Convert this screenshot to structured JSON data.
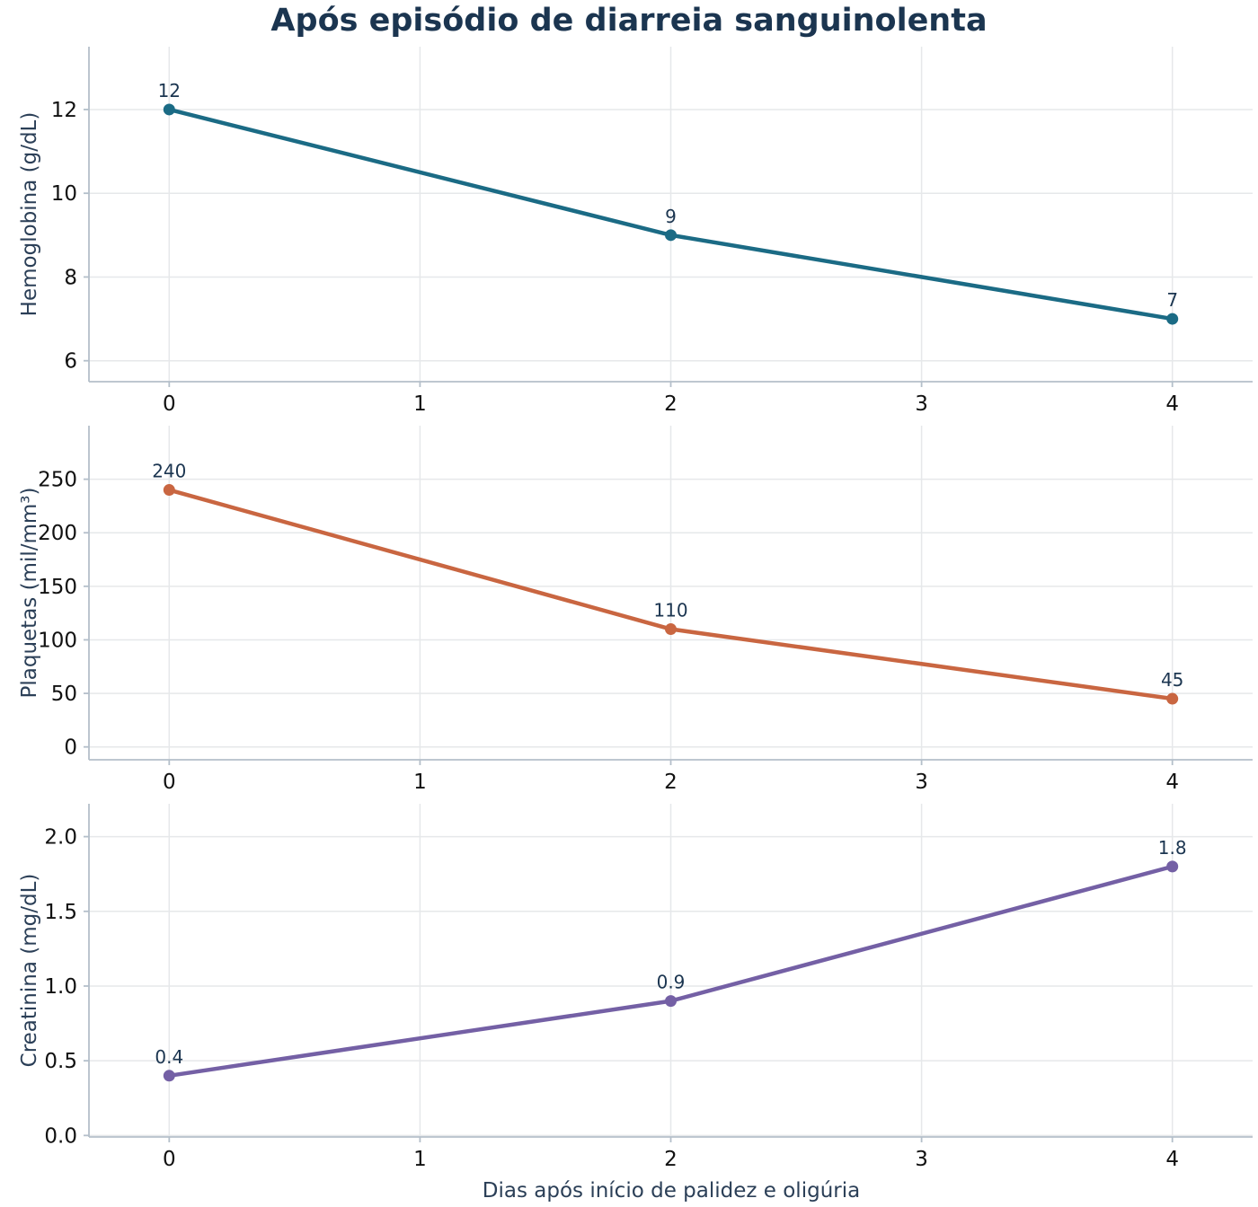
{
  "chart_data": {
    "title": "Após episódio de diarreia sanguinolenta",
    "xlabel": "Dias após início de palidez e oligúria",
    "panels": [
      {
        "type": "line",
        "ylabel": "Hemoglobina (g/dL)",
        "color": "#1b6b85",
        "x": [
          0,
          2,
          4
        ],
        "y": [
          12,
          9,
          7
        ],
        "point_labels": [
          "12",
          "9",
          "7"
        ],
        "xlim": [
          -0.32,
          4.32
        ],
        "ylim": [
          5.5,
          13.5
        ],
        "xticks": [
          0,
          1,
          2,
          3,
          4
        ],
        "xtick_labels": [
          "0",
          "1",
          "2",
          "3",
          "4"
        ],
        "yticks": [
          6,
          8,
          10,
          12
        ],
        "ytick_labels": [
          "6",
          "8",
          "10",
          "12"
        ],
        "grid": true
      },
      {
        "type": "line",
        "ylabel": "Plaquetas (mil/mm³)",
        "color": "#c96641",
        "x": [
          0,
          2,
          4
        ],
        "y": [
          240,
          110,
          45
        ],
        "point_labels": [
          "240",
          "110",
          "45"
        ],
        "xlim": [
          -0.32,
          4.32
        ],
        "ylim": [
          -12,
          300
        ],
        "xticks": [
          0,
          1,
          2,
          3,
          4
        ],
        "xtick_labels": [
          "0",
          "1",
          "2",
          "3",
          "4"
        ],
        "yticks": [
          0,
          50,
          100,
          150,
          200,
          250
        ],
        "ytick_labels": [
          "0",
          "50",
          "100",
          "150",
          "200",
          "250"
        ],
        "grid": true
      },
      {
        "type": "line",
        "ylabel": "Creatinina (mg/dL)",
        "color": "#7460a5",
        "x": [
          0,
          2,
          4
        ],
        "y": [
          0.4,
          0.9,
          1.8
        ],
        "point_labels": [
          "0.4",
          "0.9",
          "1.8"
        ],
        "xlim": [
          -0.32,
          4.32
        ],
        "ylim": [
          -0.01,
          2.22
        ],
        "xticks": [
          0,
          1,
          2,
          3,
          4
        ],
        "xtick_labels": [
          "0",
          "1",
          "2",
          "3",
          "4"
        ],
        "yticks": [
          0,
          0.5,
          1,
          1.5,
          2
        ],
        "ytick_labels": [
          "0.0",
          "0.5",
          "1.0",
          "1.5",
          "2.0"
        ],
        "grid": true
      }
    ]
  }
}
